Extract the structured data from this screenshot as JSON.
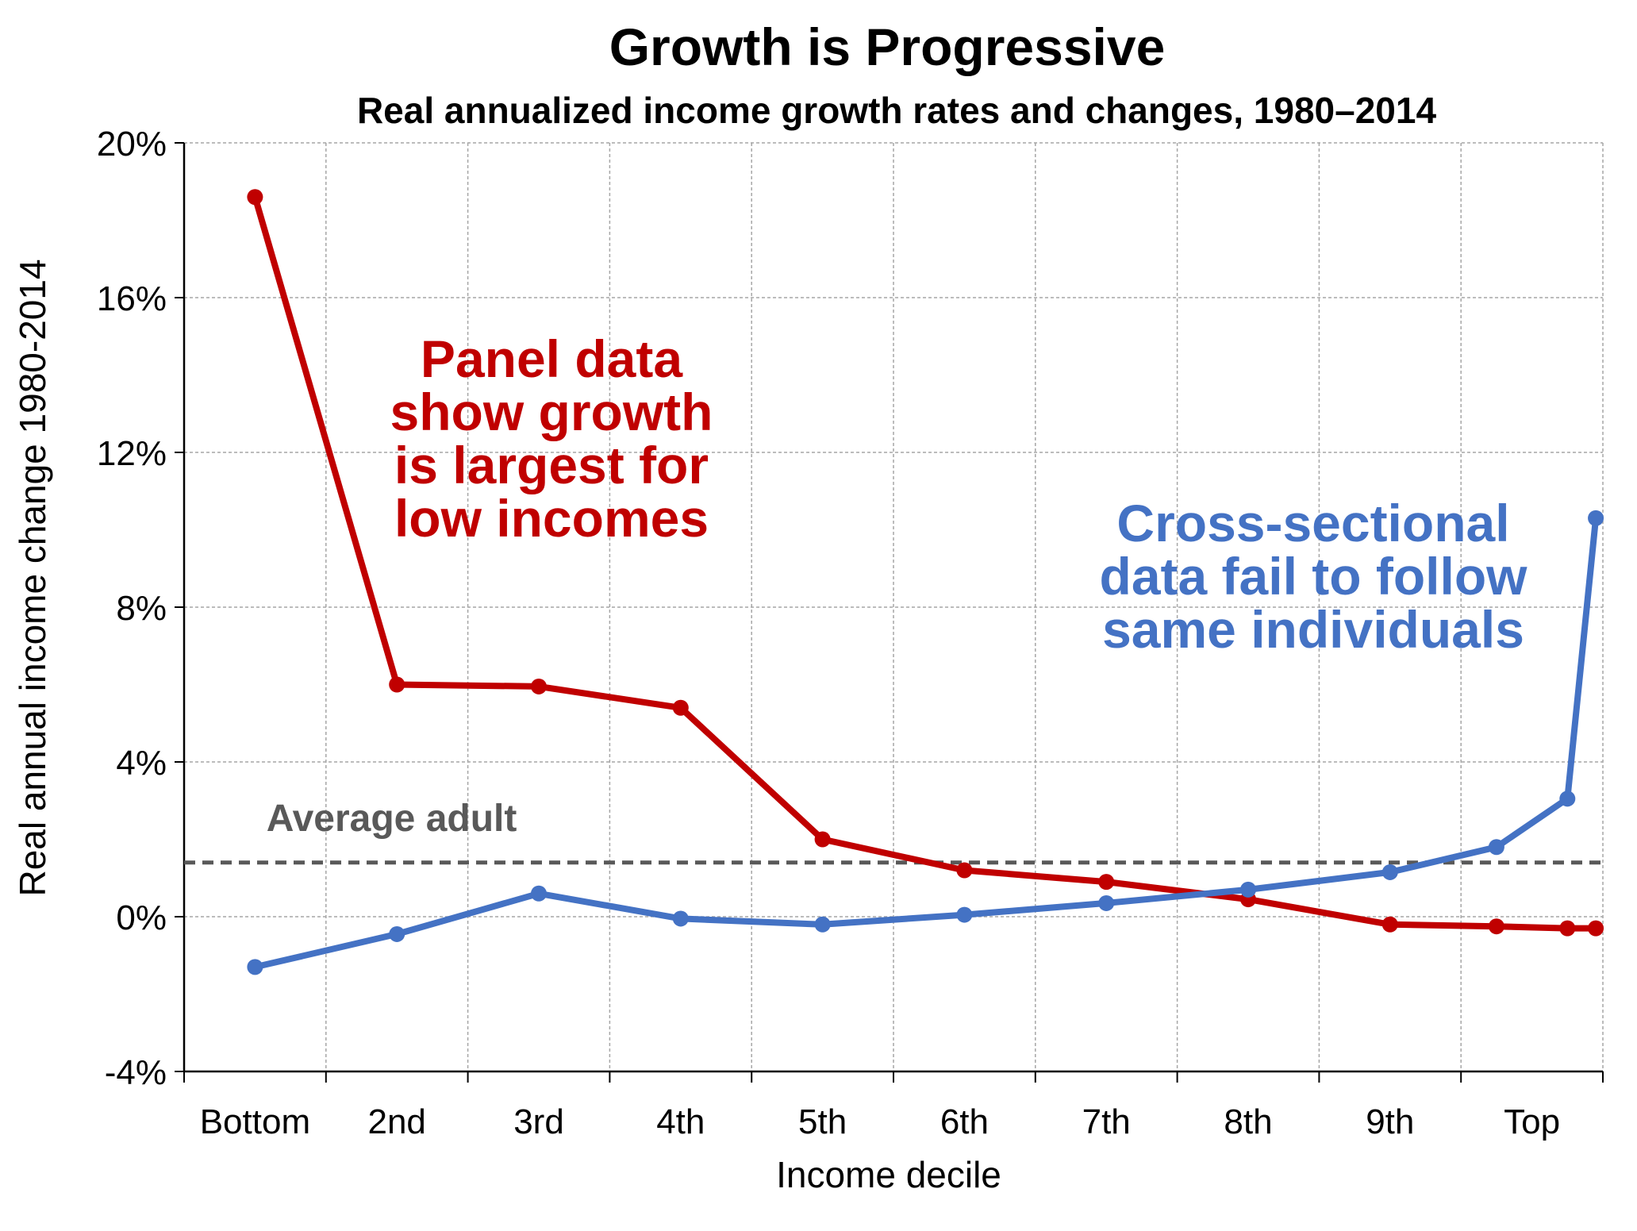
{
  "chart_data": {
    "type": "line",
    "title": "Growth is Progressive",
    "subtitle": "Real annualized income growth rates and changes, 1980–2014",
    "xlabel": "Income decile",
    "ylabel": "Real annual income change 1980-2014",
    "ylim": [
      -4,
      20
    ],
    "xlim": [
      0,
      10
    ],
    "y_ticks": [
      -4,
      0,
      4,
      8,
      12,
      16,
      20
    ],
    "y_tick_labels": [
      "-4%",
      "0%",
      "4%",
      "8%",
      "12%",
      "16%",
      "20%"
    ],
    "categories": [
      "Bottom",
      "2nd",
      "3rd",
      "4th",
      "5th",
      "6th",
      "7th",
      "8th",
      "9th",
      "Top"
    ],
    "grid": true,
    "series": [
      {
        "color": "#c00000",
        "x": [
          0.5,
          1.5,
          2.5,
          3.5,
          4.5,
          5.5,
          6.5,
          7.5,
          8.5,
          9.25,
          9.75,
          9.95
        ],
        "values": [
          18.6,
          6.0,
          5.95,
          5.4,
          2.0,
          1.2,
          0.9,
          0.45,
          -0.2,
          -0.25,
          -0.3,
          -0.3
        ]
      },
      {
        "color": "#4472c4",
        "x": [
          0.5,
          1.5,
          2.5,
          3.5,
          4.5,
          5.5,
          6.5,
          7.5,
          8.5,
          9.25,
          9.75,
          9.95
        ],
        "values": [
          -1.3,
          -0.45,
          0.6,
          -0.05,
          -0.2,
          0.05,
          0.35,
          0.7,
          1.15,
          1.8,
          3.05,
          10.3
        ]
      }
    ],
    "reference_line": {
      "label": "Average adult",
      "value": 1.4,
      "color": "#595959"
    },
    "annotations": [
      {
        "color": "#c00000",
        "lines": [
          "Panel data",
          "show growth",
          "is largest for",
          "low incomes"
        ]
      },
      {
        "color": "#4472c4",
        "lines": [
          "Cross-sectional",
          "data fail to follow",
          "same individuals"
        ]
      }
    ]
  }
}
